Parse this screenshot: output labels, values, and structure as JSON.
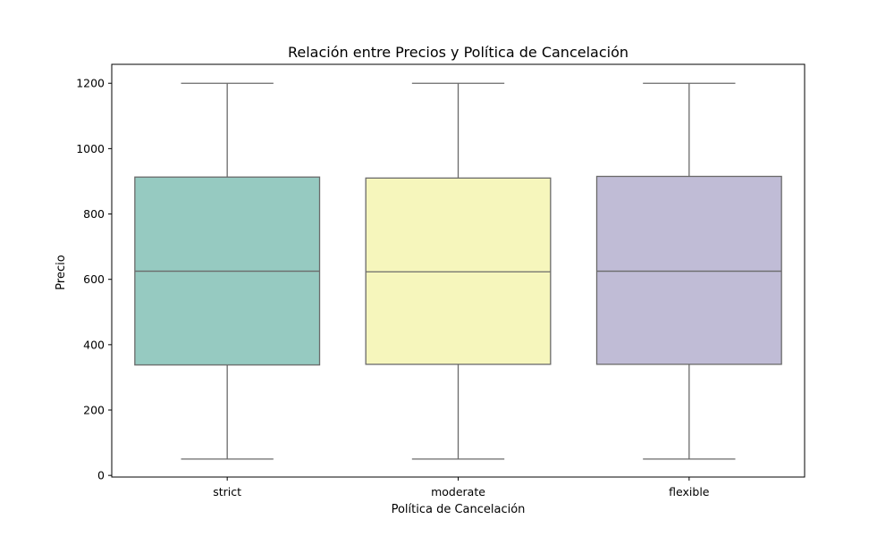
{
  "chart_data": {
    "type": "box",
    "title": "Relación entre Precios y Política de Cancelación",
    "xlabel": "Política de Cancelación",
    "ylabel": "Precio",
    "ylim": [
      -5,
      1258
    ],
    "yticks": [
      0,
      200,
      400,
      600,
      800,
      1000,
      1200
    ],
    "categories": [
      "strict",
      "moderate",
      "flexible"
    ],
    "boxes": [
      {
        "category": "strict",
        "min": 50,
        "q1": 338,
        "median": 625,
        "q3": 913,
        "max": 1200,
        "color": "#96cac1"
      },
      {
        "category": "moderate",
        "min": 50,
        "q1": 340,
        "median": 623,
        "q3": 910,
        "max": 1200,
        "color": "#f6f6bc"
      },
      {
        "category": "flexible",
        "min": 50,
        "q1": 340,
        "median": 625,
        "q3": 915,
        "max": 1200,
        "color": "#c0bcd6"
      }
    ],
    "grid": false,
    "legend": "none"
  }
}
